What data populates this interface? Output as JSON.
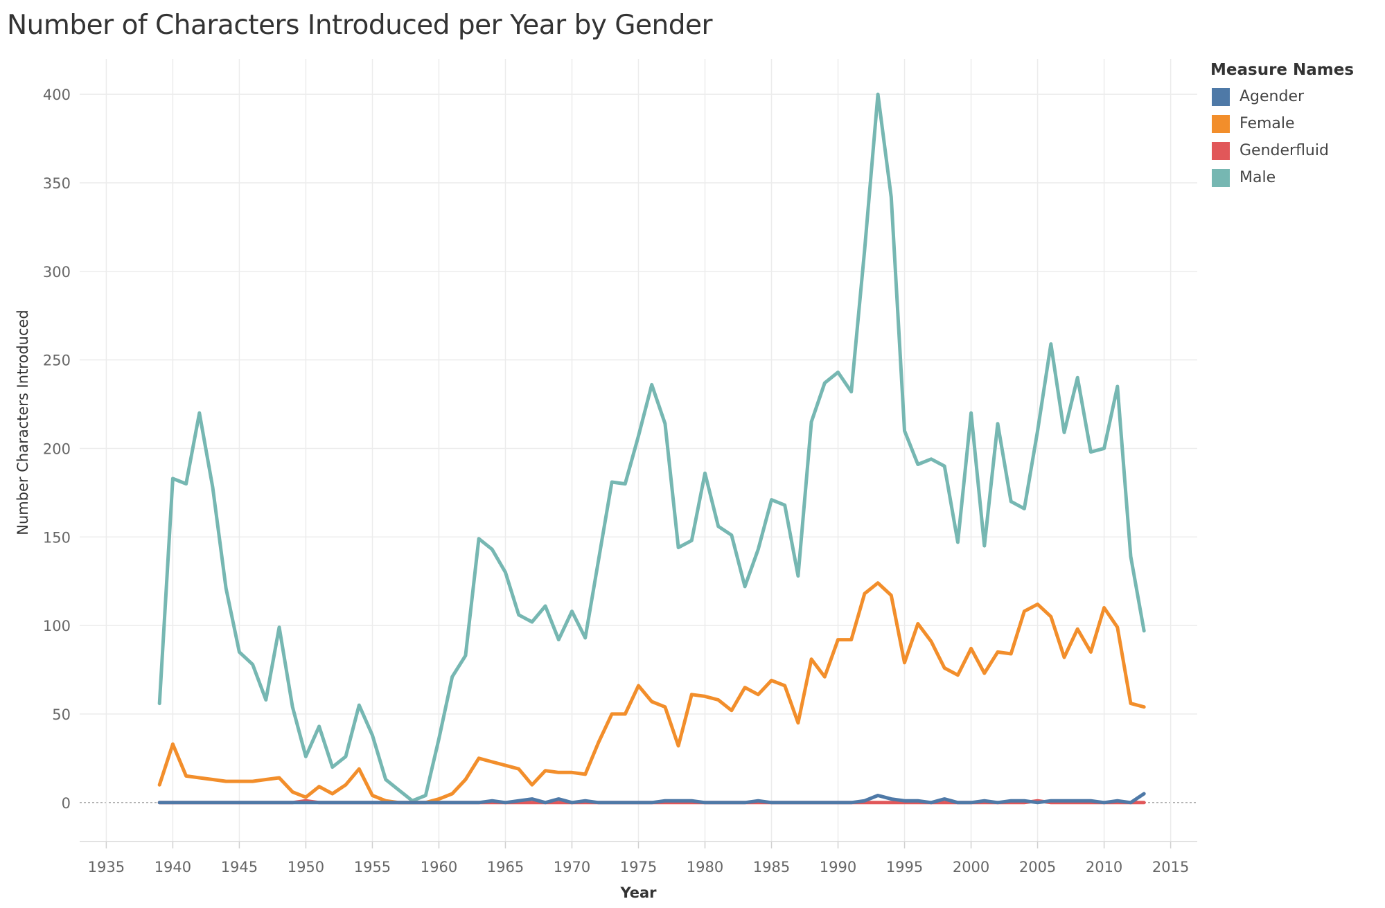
{
  "chart_data": {
    "type": "line",
    "title": "Number of Characters Introduced per Year by Gender",
    "xlabel": "Year",
    "ylabel": "Number Characters Introduced",
    "xlim": [
      1933,
      2017
    ],
    "ylim": [
      -22,
      420
    ],
    "x_ticks": [
      1935,
      1940,
      1945,
      1950,
      1955,
      1960,
      1965,
      1970,
      1975,
      1980,
      1985,
      1990,
      1995,
      2000,
      2005,
      2010,
      2015
    ],
    "y_ticks": [
      0,
      50,
      100,
      150,
      200,
      250,
      300,
      350,
      400
    ],
    "grid": true,
    "legend": {
      "title": "Measure Names",
      "placement": "top-right"
    },
    "series": [
      {
        "name": "Male",
        "color": "#76b7b2",
        "x": [
          1939,
          1940,
          1941,
          1942,
          1943,
          1944,
          1945,
          1946,
          1947,
          1948,
          1949,
          1950,
          1951,
          1952,
          1953,
          1954,
          1955,
          1956,
          1957,
          1958,
          1959,
          1960,
          1961,
          1962,
          1963,
          1964,
          1965,
          1966,
          1967,
          1968,
          1969,
          1970,
          1971,
          1972,
          1973,
          1974,
          1975,
          1976,
          1977,
          1978,
          1979,
          1980,
          1981,
          1982,
          1983,
          1984,
          1985,
          1986,
          1987,
          1988,
          1989,
          1990,
          1991,
          1992,
          1993,
          1994,
          1995,
          1996,
          1997,
          1998,
          1999,
          2000,
          2001,
          2002,
          2003,
          2004,
          2005,
          2006,
          2007,
          2008,
          2009,
          2010,
          2011,
          2012,
          2013
        ],
        "y": [
          56,
          183,
          180,
          220,
          178,
          121,
          85,
          78,
          58,
          99,
          54,
          26,
          43,
          20,
          26,
          55,
          38,
          13,
          7,
          1,
          4,
          36,
          71,
          83,
          149,
          143,
          130,
          106,
          102,
          111,
          92,
          108,
          93,
          137,
          181,
          180,
          207,
          236,
          214,
          144,
          148,
          186,
          156,
          151,
          122,
          143,
          171,
          168,
          128,
          215,
          237,
          243,
          232,
          312,
          400,
          342,
          210,
          191,
          194,
          190,
          147,
          220,
          145,
          214,
          170,
          166,
          210,
          259,
          209,
          240,
          198,
          200,
          235,
          139,
          97
        ]
      },
      {
        "name": "Female",
        "color": "#f28e2b",
        "x": [
          1939,
          1940,
          1941,
          1942,
          1943,
          1944,
          1945,
          1946,
          1947,
          1948,
          1949,
          1950,
          1951,
          1952,
          1953,
          1954,
          1955,
          1956,
          1957,
          1958,
          1959,
          1960,
          1961,
          1962,
          1963,
          1964,
          1965,
          1966,
          1967,
          1968,
          1969,
          1970,
          1971,
          1972,
          1973,
          1974,
          1975,
          1976,
          1977,
          1978,
          1979,
          1980,
          1981,
          1982,
          1983,
          1984,
          1985,
          1986,
          1987,
          1988,
          1989,
          1990,
          1991,
          1992,
          1993,
          1994,
          1995,
          1996,
          1997,
          1998,
          1999,
          2000,
          2001,
          2002,
          2003,
          2004,
          2005,
          2006,
          2007,
          2008,
          2009,
          2010,
          2011,
          2012,
          2013
        ],
        "y": [
          10,
          33,
          15,
          14,
          13,
          12,
          12,
          12,
          13,
          14,
          6,
          3,
          9,
          5,
          10,
          19,
          4,
          1,
          0,
          0,
          0,
          2,
          5,
          13,
          25,
          23,
          21,
          19,
          10,
          18,
          17,
          17,
          16,
          34,
          50,
          50,
          66,
          57,
          54,
          32,
          61,
          60,
          58,
          52,
          65,
          61,
          69,
          66,
          45,
          81,
          71,
          92,
          92,
          118,
          124,
          117,
          79,
          101,
          91,
          76,
          72,
          87,
          73,
          85,
          84,
          108,
          112,
          105,
          82,
          98,
          85,
          110,
          99,
          56,
          54
        ]
      },
      {
        "name": "Genderfluid",
        "color": "#e15759",
        "x": [
          1939,
          1940,
          1941,
          1942,
          1943,
          1944,
          1945,
          1946,
          1947,
          1948,
          1949,
          1950,
          1951,
          1952,
          1953,
          1954,
          1955,
          1956,
          1957,
          1958,
          1959,
          1960,
          1961,
          1962,
          1963,
          1964,
          1965,
          1966,
          1967,
          1968,
          1969,
          1970,
          1971,
          1972,
          1973,
          1974,
          1975,
          1976,
          1977,
          1978,
          1979,
          1980,
          1981,
          1982,
          1983,
          1984,
          1985,
          1986,
          1987,
          1988,
          1989,
          1990,
          1991,
          1992,
          1993,
          1994,
          1995,
          1996,
          1997,
          1998,
          1999,
          2000,
          2001,
          2002,
          2003,
          2004,
          2005,
          2006,
          2007,
          2008,
          2009,
          2010,
          2011,
          2012,
          2013
        ],
        "y": [
          0,
          0,
          0,
          0,
          0,
          0,
          0,
          0,
          0,
          0,
          0,
          1,
          0,
          0,
          0,
          0,
          0,
          0,
          0,
          0,
          0,
          0,
          0,
          0,
          0,
          0,
          0,
          0,
          0,
          0,
          0,
          0,
          0,
          0,
          0,
          0,
          0,
          0,
          0,
          0,
          0,
          0,
          0,
          0,
          0,
          0,
          0,
          0,
          0,
          0,
          0,
          0,
          0,
          0,
          0,
          0,
          0,
          0,
          0,
          0,
          0,
          0,
          0,
          0,
          0,
          0,
          1,
          0,
          0,
          0,
          0,
          0,
          0,
          0,
          0
        ]
      },
      {
        "name": "Agender",
        "color": "#4e79a7",
        "x": [
          1939,
          1940,
          1941,
          1942,
          1943,
          1944,
          1945,
          1946,
          1947,
          1948,
          1949,
          1950,
          1951,
          1952,
          1953,
          1954,
          1955,
          1956,
          1957,
          1958,
          1959,
          1960,
          1961,
          1962,
          1963,
          1964,
          1965,
          1966,
          1967,
          1968,
          1969,
          1970,
          1971,
          1972,
          1973,
          1974,
          1975,
          1976,
          1977,
          1978,
          1979,
          1980,
          1981,
          1982,
          1983,
          1984,
          1985,
          1986,
          1987,
          1988,
          1989,
          1990,
          1991,
          1992,
          1993,
          1994,
          1995,
          1996,
          1997,
          1998,
          1999,
          2000,
          2001,
          2002,
          2003,
          2004,
          2005,
          2006,
          2007,
          2008,
          2009,
          2010,
          2011,
          2012,
          2013
        ],
        "y": [
          0,
          0,
          0,
          0,
          0,
          0,
          0,
          0,
          0,
          0,
          0,
          0,
          0,
          0,
          0,
          0,
          0,
          0,
          0,
          0,
          0,
          0,
          0,
          0,
          0,
          1,
          0,
          1,
          2,
          0,
          2,
          0,
          1,
          0,
          0,
          0,
          0,
          0,
          1,
          1,
          1,
          0,
          0,
          0,
          0,
          1,
          0,
          0,
          0,
          0,
          0,
          0,
          0,
          1,
          4,
          2,
          1,
          1,
          0,
          2,
          0,
          0,
          1,
          0,
          1,
          1,
          0,
          1,
          1,
          1,
          1,
          0,
          1,
          0,
          5
        ]
      }
    ],
    "legend_order": [
      "Agender",
      "Female",
      "Genderfluid",
      "Male"
    ]
  }
}
